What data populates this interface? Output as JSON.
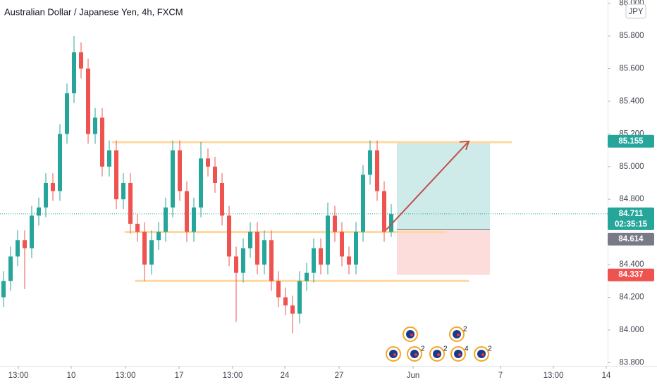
{
  "chart_data": {
    "type": "candlestick",
    "title": "Australian Dollar / Japanese Yen, 4h, FXCM",
    "currency": "JPY",
    "x": [
      0,
      1,
      2,
      3,
      4,
      5,
      6,
      7,
      8,
      9,
      10,
      11,
      12,
      13,
      14,
      15,
      16,
      17,
      18,
      19,
      20,
      21,
      22,
      23,
      24,
      25,
      26,
      27,
      28,
      29,
      30,
      31,
      32,
      33,
      34,
      35,
      36,
      37,
      38,
      39,
      40,
      41,
      42,
      43,
      44,
      45,
      46,
      47,
      48,
      49,
      50,
      51,
      52,
      53,
      54,
      55
    ],
    "open": [
      84.2,
      84.3,
      84.45,
      84.55,
      84.5,
      84.7,
      84.75,
      84.9,
      84.85,
      85.2,
      85.45,
      85.7,
      85.6,
      85.2,
      85.3,
      85.0,
      85.1,
      84.8,
      84.9,
      84.65,
      84.6,
      84.4,
      84.55,
      84.6,
      84.75,
      85.1,
      84.85,
      84.6,
      84.75,
      85.05,
      85.0,
      84.9,
      84.7,
      84.45,
      84.35,
      84.5,
      84.6,
      84.4,
      84.55,
      84.3,
      84.2,
      84.15,
      84.1,
      84.3,
      84.35,
      84.5,
      84.4,
      84.7,
      84.6,
      84.45,
      84.4,
      84.6,
      84.95,
      85.1,
      84.85,
      84.6
    ],
    "high": [
      84.36,
      84.51,
      84.61,
      84.61,
      84.76,
      84.81,
      84.96,
      84.96,
      85.26,
      85.51,
      85.8,
      85.76,
      85.66,
      85.36,
      85.36,
      85.16,
      85.16,
      84.96,
      84.96,
      84.71,
      84.66,
      84.61,
      84.66,
      84.81,
      85.16,
      85.16,
      84.91,
      84.81,
      85.15,
      85.11,
      85.06,
      84.96,
      84.76,
      84.51,
      84.56,
      84.66,
      84.66,
      84.61,
      84.61,
      84.36,
      84.26,
      84.21,
      84.36,
      84.41,
      84.56,
      84.56,
      84.78,
      84.76,
      84.66,
      84.51,
      84.66,
      85.01,
      85.16,
      85.16,
      84.91,
      84.77
    ],
    "low": [
      84.14,
      84.24,
      84.39,
      84.25,
      84.44,
      84.64,
      84.69,
      84.79,
      84.79,
      85.14,
      85.39,
      85.54,
      85.14,
      85.14,
      84.94,
      84.94,
      84.74,
      84.74,
      84.59,
      84.54,
      84.3,
      84.34,
      84.49,
      84.54,
      84.69,
      84.79,
      84.54,
      84.54,
      84.69,
      84.94,
      84.84,
      84.64,
      84.39,
      84.05,
      84.29,
      84.44,
      84.34,
      84.34,
      84.24,
      84.14,
      84.09,
      83.98,
      84.04,
      84.24,
      84.29,
      84.34,
      84.34,
      84.54,
      84.39,
      84.34,
      84.34,
      84.54,
      84.89,
      84.79,
      84.54,
      84.57
    ],
    "close": [
      84.3,
      84.45,
      84.55,
      84.5,
      84.7,
      84.75,
      84.9,
      84.85,
      85.2,
      85.45,
      85.7,
      85.6,
      85.2,
      85.3,
      85.0,
      85.1,
      84.8,
      84.9,
      84.65,
      84.6,
      84.4,
      84.55,
      84.6,
      84.75,
      85.1,
      84.85,
      84.6,
      84.75,
      85.05,
      85.0,
      84.9,
      84.7,
      84.45,
      84.35,
      84.5,
      84.6,
      84.4,
      84.55,
      84.3,
      84.2,
      84.15,
      84.1,
      84.3,
      84.35,
      84.5,
      84.4,
      84.7,
      84.6,
      84.45,
      84.4,
      84.6,
      84.95,
      85.1,
      84.85,
      84.6,
      84.71
    ],
    "up_color": "#26a69a",
    "down_color": "#ef5350",
    "xlim": [
      -0.5,
      85.7
    ],
    "ylim": [
      83.78,
      86.02
    ],
    "xticks": [
      {
        "value": 2.1,
        "label": "13:00"
      },
      {
        "value": 9.6,
        "label": "10"
      },
      {
        "value": 17.3,
        "label": "13:00"
      },
      {
        "value": 24.9,
        "label": "17"
      },
      {
        "value": 32.5,
        "label": "13:00"
      },
      {
        "value": 39.9,
        "label": "24"
      },
      {
        "value": 47.6,
        "label": "27"
      },
      {
        "value": 58.1,
        "label": "Jun"
      },
      {
        "value": 70.5,
        "label": "7"
      },
      {
        "value": 78,
        "label": "13:00"
      },
      {
        "value": 85.5,
        "label": "14"
      }
    ],
    "yticks": [
      {
        "value": 86,
        "label": "86.000"
      },
      {
        "value": 85.8,
        "label": "85.800"
      },
      {
        "value": 85.6,
        "label": "85.600"
      },
      {
        "value": 85.4,
        "label": "85.400"
      },
      {
        "value": 85.2,
        "label": "85.200"
      },
      {
        "value": 85,
        "label": "85.000"
      },
      {
        "value": 84.8,
        "label": "84.800"
      },
      {
        "value": 84.4,
        "label": "84.400"
      },
      {
        "value": 84.2,
        "label": "84.200"
      },
      {
        "value": 84,
        "label": "84.000"
      },
      {
        "value": 83.8,
        "label": "83.800"
      }
    ],
    "grid": false,
    "levels": [
      85.15,
      84.6,
      84.3
    ],
    "level_color": "#ffd8a0",
    "current_price": 84.711,
    "countdown": "02:35:15",
    "position": {
      "target": 85.155,
      "entry": 84.614,
      "stop": 84.337
    },
    "events": [
      "2",
      "2",
      "2",
      "4",
      "2"
    ]
  }
}
